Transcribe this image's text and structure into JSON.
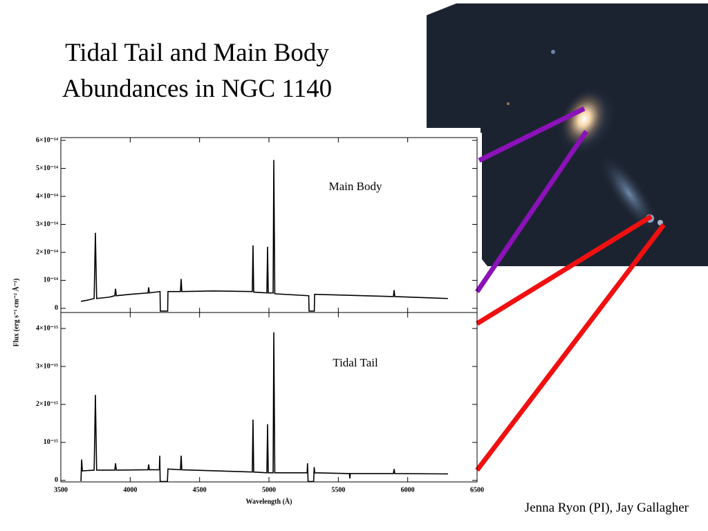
{
  "title": [
    "Tidal Tail and Main Body",
    "Abundances in NGC 1140"
  ],
  "credit": "Jenna Ryon (PI), Jay Gallagher",
  "chart_data": [
    {
      "type": "line",
      "annotation": "Main Body",
      "ylabel": "Flux (erg s⁻¹ cm⁻² Å⁻¹)",
      "x": [
        3645,
        3700,
        3740,
        3749,
        3758,
        3850,
        3889,
        3894,
        3900,
        4000,
        4128,
        4133,
        4138,
        4215,
        4217,
        4270,
        4272,
        4362,
        4367,
        4372,
        4600,
        4880,
        4885,
        4890,
        4985,
        4990,
        4995,
        5030,
        5035,
        5042,
        5287,
        5289,
        5327,
        5329,
        5897,
        5902,
        5907,
        6290
      ],
      "series": [
        {
          "name": "Main Body",
          "color": "#000000",
          "values": [
            2.5e-15,
            3e-15,
            3.5e-15,
            2.7e-14,
            3.5e-15,
            4e-15,
            4.5e-15,
            7e-15,
            4.5e-15,
            5e-15,
            5.5e-15,
            7.5e-15,
            5.5e-15,
            6e-15,
            -1e-15,
            -1e-15,
            6e-15,
            6e-15,
            1.05e-14,
            6e-15,
            6.2e-15,
            6e-15,
            2.25e-14,
            5.8e-15,
            5.5e-15,
            2.2e-14,
            5.5e-15,
            5.5e-15,
            5.3e-14,
            5.2e-15,
            4.5e-15,
            -1e-15,
            -1e-15,
            5e-15,
            4.2e-15,
            6.5e-15,
            4.2e-15,
            3.5e-15
          ]
        }
      ],
      "xlim": [
        3500,
        6500
      ],
      "ylim": [
        -1.5e-15,
        6.1e-14
      ],
      "yticks": [
        0,
        {
          "value": 1e-14,
          "label": "10⁻¹⁴"
        },
        {
          "value": 2e-14,
          "label": "2×10⁻¹⁴"
        },
        {
          "value": 3e-14,
          "label": "3×10⁻¹⁴"
        },
        {
          "value": 4e-14,
          "label": "4×10⁻¹⁴"
        },
        {
          "value": 5e-14,
          "label": "5×10⁻¹⁴"
        },
        {
          "value": 6e-14,
          "label": "6×10⁻¹⁴"
        }
      ]
    },
    {
      "type": "line",
      "annotation": "Tidal Tail",
      "xlabel": "Wavelength (Å)",
      "x": [
        3645,
        3650,
        3655,
        3740,
        3749,
        3758,
        3889,
        3894,
        3900,
        4128,
        4133,
        4138,
        4210,
        4213,
        4216,
        4268,
        4272,
        4362,
        4367,
        4372,
        4880,
        4885,
        4890,
        4985,
        4990,
        4995,
        5030,
        5035,
        5042,
        5275,
        5278,
        5282,
        5322,
        5326,
        5330,
        5580,
        5583,
        5586,
        5897,
        5902,
        5907,
        6290
      ],
      "series": [
        {
          "name": "Tidal Tail",
          "color": "#000000",
          "values": [
            -2e-17,
            5.5e-16,
            2.5e-16,
            2.7e-16,
            2.25e-15,
            2.7e-16,
            2.7e-16,
            4.5e-16,
            2.7e-16,
            2.8e-16,
            4.2e-16,
            2.8e-16,
            2.8e-16,
            6.5e-16,
            -3e-17,
            -3e-17,
            3e-16,
            2.8e-16,
            6.5e-16,
            2.8e-16,
            2.2e-16,
            1.6e-15,
            2.2e-16,
            2e-16,
            1.48e-15,
            2e-16,
            2e-16,
            3.9e-15,
            2e-16,
            2e-16,
            4.5e-16,
            -3e-17,
            -3e-17,
            3.5e-16,
            2e-16,
            1.8e-16,
            5e-17,
            1.8e-16,
            1.8e-16,
            3e-16,
            1.8e-16,
            1.7e-16
          ]
        }
      ],
      "xlim": [
        3500,
        6500
      ],
      "xticks": [
        3500,
        4000,
        4500,
        5000,
        5500,
        6000,
        6500
      ],
      "ylim": [
        -4e-17,
        4.42e-15
      ],
      "yticks": [
        0,
        {
          "value": 1e-15,
          "label": "10⁻¹⁵"
        },
        {
          "value": 2e-15,
          "label": "2×10⁻¹⁵"
        },
        {
          "value": 3e-15,
          "label": "3×10⁻¹⁵"
        },
        {
          "value": 4e-15,
          "label": "4×10⁻¹⁵"
        }
      ]
    }
  ]
}
